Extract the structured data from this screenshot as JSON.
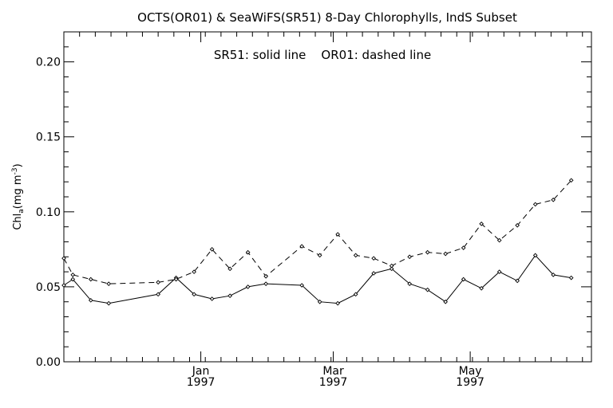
{
  "chart_data": {
    "type": "line",
    "title": "OCTS(OR01) & SeaWiFS(SR51) 8-Day Chlorophylls, IndS Subset",
    "annotation": "SR51: solid line    OR01: dashed line",
    "ylabel": {
      "main": "Chl",
      "sub": "a",
      "units": "(mg m",
      "sup": "-3",
      "close": ")"
    },
    "ylim": [
      0.0,
      0.22
    ],
    "y_ticks": [
      "0.00",
      "0.05",
      "0.10",
      "0.15",
      "0.20"
    ],
    "x_ticks": [
      {
        "date": "1997-01-01",
        "month": "Jan",
        "year": "1997"
      },
      {
        "date": "1997-03-01",
        "month": "Mar",
        "year": "1997"
      },
      {
        "date": "1997-05-01",
        "month": "May",
        "year": "1997"
      }
    ],
    "xlim": [
      "1996-11-01",
      "1997-06-24"
    ],
    "grid": false,
    "series": [
      {
        "name": "SR51",
        "style": "solid",
        "color": "#000000",
        "points": [
          [
            "1996-11-01",
            0.051
          ],
          [
            "1996-11-05",
            0.055
          ],
          [
            "1996-11-13",
            0.041
          ],
          [
            "1996-11-21",
            0.039
          ],
          [
            "1996-12-13",
            0.045
          ],
          [
            "1996-12-21",
            0.056
          ],
          [
            "1996-12-29",
            0.045
          ],
          [
            "1997-01-06",
            0.042
          ],
          [
            "1997-01-14",
            0.044
          ],
          [
            "1997-01-22",
            0.05
          ],
          [
            "1997-01-30",
            0.052
          ],
          [
            "1997-02-15",
            0.051
          ],
          [
            "1997-02-23",
            0.04
          ],
          [
            "1997-03-03",
            0.039
          ],
          [
            "1997-03-11",
            0.045
          ],
          [
            "1997-03-19",
            0.059
          ],
          [
            "1997-03-27",
            0.062
          ],
          [
            "1997-04-04",
            0.052
          ],
          [
            "1997-04-12",
            0.048
          ],
          [
            "1997-04-20",
            0.04
          ],
          [
            "1997-04-28",
            0.055
          ],
          [
            "1997-05-06",
            0.049
          ],
          [
            "1997-05-14",
            0.06
          ],
          [
            "1997-05-22",
            0.054
          ],
          [
            "1997-05-30",
            0.071
          ],
          [
            "1997-06-07",
            0.058
          ],
          [
            "1997-06-15",
            0.056
          ]
        ]
      },
      {
        "name": "OR01",
        "style": "dashed",
        "color": "#000000",
        "points": [
          [
            "1996-11-01",
            0.069
          ],
          [
            "1996-11-05",
            0.058
          ],
          [
            "1996-11-13",
            0.055
          ],
          [
            "1996-11-21",
            0.052
          ],
          [
            "1996-12-13",
            0.053
          ],
          [
            "1996-12-21",
            0.055
          ],
          [
            "1996-12-29",
            0.06
          ],
          [
            "1997-01-06",
            0.075
          ],
          [
            "1997-01-14",
            0.062
          ],
          [
            "1997-01-22",
            0.073
          ],
          [
            "1997-01-30",
            0.057
          ],
          [
            "1997-02-15",
            0.077
          ],
          [
            "1997-02-23",
            0.071
          ],
          [
            "1997-03-03",
            0.085
          ],
          [
            "1997-03-11",
            0.071
          ],
          [
            "1997-03-19",
            0.069
          ],
          [
            "1997-03-27",
            0.064
          ],
          [
            "1997-04-04",
            0.07
          ],
          [
            "1997-04-12",
            0.073
          ],
          [
            "1997-04-20",
            0.072
          ],
          [
            "1997-04-28",
            0.076
          ],
          [
            "1997-05-06",
            0.092
          ],
          [
            "1997-05-14",
            0.081
          ],
          [
            "1997-05-22",
            0.091
          ],
          [
            "1997-05-30",
            0.105
          ],
          [
            "1997-06-07",
            0.108
          ],
          [
            "1997-06-15",
            0.121
          ]
        ]
      }
    ]
  }
}
